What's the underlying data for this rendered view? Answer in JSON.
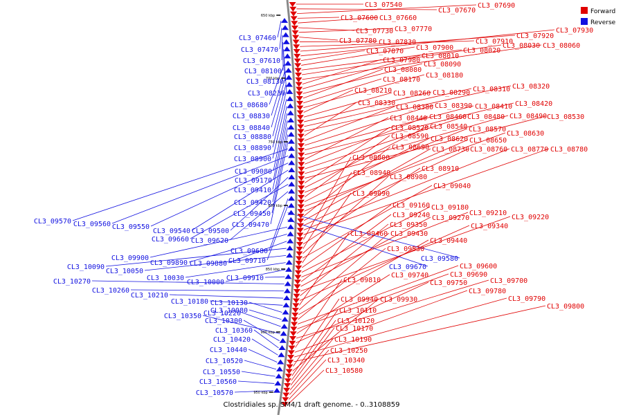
{
  "caption": "Clostridiales sp. SM4/1 draft genome. - 0..3108859",
  "colors": {
    "forward": "#e00000",
    "reverse": "#1010e0",
    "backbone": "#888888"
  },
  "legend": {
    "forward": "Forward",
    "reverse": "Reverse"
  },
  "ticks": [
    {
      "label": "650 kbp",
      "kbp": 650
    },
    {
      "label": "700 kbp",
      "kbp": 700
    },
    {
      "label": "750 kbp",
      "kbp": 750
    },
    {
      "label": "800 kbp",
      "kbp": 800
    },
    {
      "label": "850 kbp",
      "kbp": 850
    },
    {
      "label": "900 kbp",
      "kbp": 900
    },
    {
      "label": "950 kbp",
      "kbp": 950
    }
  ],
  "forward_genes": [
    "CL3_07540",
    "CL3_07670",
    "CL3_07690",
    "CL3_07600",
    "CL3_07660",
    "CL3_07730",
    "CL3_07770",
    "CL3_07780",
    "CL3_07830",
    "CL3_07910",
    "CL3_07920",
    "CL3_07930",
    "CL3_07870",
    "CL3_07900",
    "CL3_08020",
    "CL3_08030",
    "CL3_08060",
    "CL3_07980",
    "CL3_08010",
    "CL3_08090",
    "CL3_08080",
    "CL3_08170",
    "CL3_08180",
    "CL3_08210",
    "CL3_08260",
    "CL3_08290",
    "CL3_08310",
    "CL3_08320",
    "CL3_08330",
    "CL3_08380",
    "CL3_08390",
    "CL3_08410",
    "CL3_08420",
    "CL3_08440",
    "CL3_08460",
    "CL3_08480",
    "CL3_08490",
    "CL3_08530",
    "CL3_08520",
    "CL3_08540",
    "CL3_08570",
    "CL3_08590",
    "CL3_08620",
    "CL3_08630",
    "CL3_08650",
    "CL3_08690",
    "CL3_08730",
    "CL3_08760",
    "CL3_08770",
    "CL3_08780",
    "CL3_08800",
    "CL3_08910",
    "CL3_08940",
    "CL3_08980",
    "CL3_09040",
    "CL3_09090",
    "CL3_09160",
    "CL3_09180",
    "CL3_09210",
    "CL3_09240",
    "CL3_09270",
    "CL3_09220",
    "CL3_09350",
    "CL3_09340",
    "CL3_09460",
    "CL3_09430",
    "CL3_09440",
    "CL3_09530",
    "CL3_09600",
    "CL3_09690",
    "CL3_09740",
    "CL3_09700",
    "CL3_09750",
    "CL3_09810",
    "CL3_09780",
    "CL3_09790",
    "CL3_09800",
    "CL3_09940",
    "CL3_09930",
    "CL3_10110",
    "CL3_10120",
    "CL3_10170",
    "CL3_10190",
    "CL3_10250",
    "CL3_10340",
    "CL3_10580"
  ],
  "reverse_genes": [
    "CL3_07460",
    "CL3_07470",
    "CL3_07610",
    "CL3_08100",
    "CL3_08130",
    "CL3_08230",
    "CL3_08680",
    "CL3_08830",
    "CL3_08840",
    "CL3_08880",
    "CL3_08890",
    "CL3_08900",
    "CL3_09080",
    "CL3_09170",
    "CL3_09410",
    "CL3_09420",
    "CL3_09450",
    "CL3_09470",
    "CL3_09570",
    "CL3_09560",
    "CL3_09550",
    "CL3_09540",
    "CL3_09500",
    "CL3_09660",
    "CL3_09620",
    "CL3_09680",
    "CL3_09710",
    "CL3_09580",
    "CL3_09670",
    "CL3_09900",
    "CL3_09890",
    "CL3_09880",
    "CL3_10090",
    "CL3_10050",
    "CL3_10030",
    "CL3_10000",
    "CL3_09910",
    "CL3_10270",
    "CL3_10260",
    "CL3_10210",
    "CL3_10180",
    "CL3_10130",
    "CL3_10080",
    "CL3_10220",
    "CL3_10350",
    "CL3_10300",
    "CL3_10360",
    "CL3_10420",
    "CL3_10440",
    "CL3_10520",
    "CL3_10550",
    "CL3_10560",
    "CL3_10570"
  ]
}
